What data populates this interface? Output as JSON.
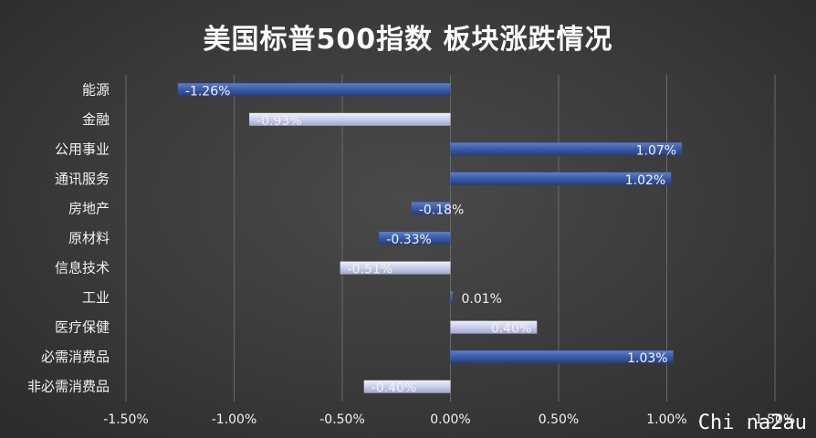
{
  "chart_data": {
    "type": "bar",
    "orientation": "horizontal",
    "title": "美国标普500指数 板块涨跌情况",
    "categories": [
      "能源",
      "金融",
      "公用事业",
      "通讯服务",
      "房地产",
      "原材料",
      "信息技术",
      "工业",
      "医疗保健",
      "必需消费品",
      "非必需消费品"
    ],
    "values": [
      -1.26,
      -0.93,
      1.07,
      1.02,
      -0.18,
      -0.33,
      -0.51,
      0.01,
      0.4,
      1.03,
      -0.4
    ],
    "value_labels": [
      "-1.26%",
      "-0.93%",
      "1.07%",
      "1.02%",
      "-0.18%",
      "-0.33%",
      "-0.51%",
      "0.01%",
      "0.40%",
      "1.03%",
      "-0.40%"
    ],
    "xlim": [
      -1.5,
      1.5
    ],
    "x_ticks": [
      -1.5,
      -1.0,
      -0.5,
      0,
      0.5,
      1.0,
      1.5
    ],
    "x_tick_labels": [
      "-1.50%",
      "-1.00%",
      "-0.50%",
      "0.00%",
      "0.50%",
      "1.00%",
      "1.50%"
    ],
    "grid": true,
    "colors": {
      "dark_bar": "#2f4f95",
      "light_bar": "#c8cde8",
      "grid": "#6a6a6a",
      "text": "#f2f2f2"
    },
    "bar_styles": [
      "dark",
      "light",
      "dark",
      "dark",
      "dark",
      "dark",
      "light",
      "dark",
      "light",
      "dark",
      "light"
    ]
  },
  "watermark": "Chi na2au"
}
